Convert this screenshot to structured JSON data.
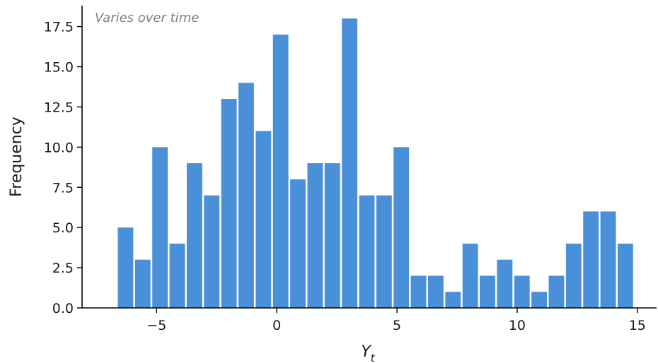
{
  "chart_data": {
    "type": "bar",
    "subtype": "histogram",
    "annotation": "Varies over time",
    "xlabel_main": "Y",
    "xlabel_sub": "t",
    "ylabel": "Frequency",
    "xlim": [
      -8.1,
      15.8
    ],
    "ylim": [
      0,
      18.8
    ],
    "bin_start": -6.65,
    "bin_width": 0.717,
    "values": [
      5,
      3,
      10,
      4,
      9,
      7,
      13,
      14,
      11,
      17,
      8,
      9,
      9,
      18,
      7,
      7,
      10,
      2,
      2,
      1,
      4,
      2,
      3,
      2,
      1,
      2,
      4,
      6,
      6,
      4
    ],
    "x_ticks": [
      {
        "value": -5,
        "label": "−5"
      },
      {
        "value": 0,
        "label": "0"
      },
      {
        "value": 5,
        "label": "5"
      },
      {
        "value": 10,
        "label": "10"
      },
      {
        "value": 15,
        "label": "15"
      }
    ],
    "y_ticks": [
      {
        "value": 0,
        "label": "0.0"
      },
      {
        "value": 2.5,
        "label": "2.5"
      },
      {
        "value": 5,
        "label": "5.0"
      },
      {
        "value": 7.5,
        "label": "7.5"
      },
      {
        "value": 10,
        "label": "10.0"
      },
      {
        "value": 12.5,
        "label": "12.5"
      },
      {
        "value": 15,
        "label": "15.0"
      },
      {
        "value": 17.5,
        "label": "17.5"
      }
    ],
    "bar_color": "#4a90d9",
    "grid": false,
    "spines": [
      "left",
      "bottom"
    ]
  }
}
